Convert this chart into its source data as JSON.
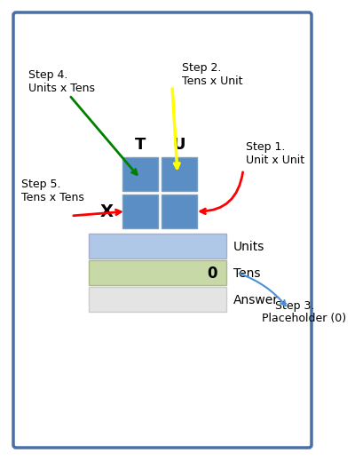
{
  "bg_color": "#ffffff",
  "border_color": "#4a6fa5",
  "box_blue": "#5b8ec4",
  "box_blue_light": "#b0c8e8",
  "box_green": "#c8d9a8",
  "box_gray": "#e4e4e4",
  "label_T": "T",
  "label_U": "U",
  "label_X": "X",
  "label_0": "0",
  "label_units": "Units",
  "label_tens": "Tens",
  "label_answer": "Answer",
  "step1_text": "Step 1.\nUnit x Unit",
  "step2_text": "Step 2.\nTens x Unit",
  "step3_line1": "Step 3.",
  "step3_line2": "Placeholder (0)",
  "step4_text": "Step 4.\nUnits x Tens",
  "step5_text": "Step 5.\nTens x Tens"
}
